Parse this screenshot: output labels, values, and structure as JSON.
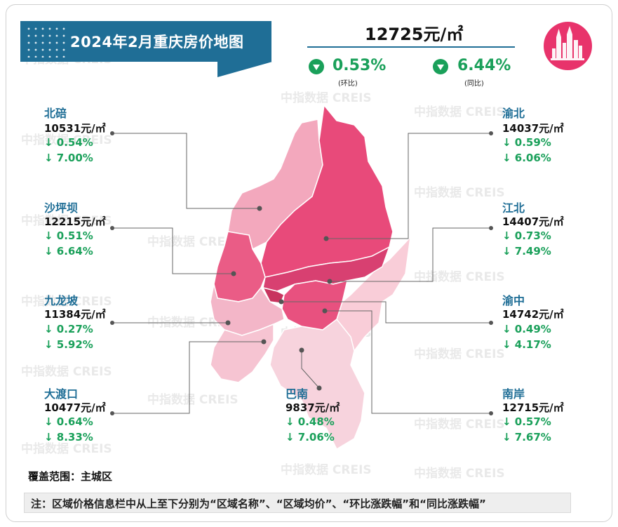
{
  "title": "2024年2月重庆房价地图",
  "average": {
    "price": "12725元/㎡",
    "mom": {
      "value": "0.53%",
      "label": "(环比)",
      "direction": "down"
    },
    "yoy": {
      "value": "6.44%",
      "label": "(同比)",
      "direction": "down"
    }
  },
  "districts": [
    {
      "name": "北碚",
      "price": "10531元/㎡",
      "mom": "↓ 0.54%",
      "yoy": "↓ 7.00%"
    },
    {
      "name": "沙坪坝",
      "price": "12215元/㎡",
      "mom": "↓ 0.51%",
      "yoy": "↓ 6.64%"
    },
    {
      "name": "九龙坡",
      "price": "11384元/㎡",
      "mom": "↓ 0.27%",
      "yoy": "↓ 5.92%"
    },
    {
      "name": "大渡口",
      "price": "10477元/㎡",
      "mom": "↓ 0.64%",
      "yoy": "↓ 8.33%"
    },
    {
      "name": "巴南",
      "price": "9837元/㎡",
      "mom": "↓ 0.48%",
      "yoy": "↓ 7.06%"
    },
    {
      "name": "渝北",
      "price": "14037元/㎡",
      "mom": "↓ 0.59%",
      "yoy": "↓ 6.06%"
    },
    {
      "name": "江北",
      "price": "14407元/㎡",
      "mom": "↓ 0.73%",
      "yoy": "↓ 7.49%"
    },
    {
      "name": "渝中",
      "price": "14742元/㎡",
      "mom": "↓ 0.49%",
      "yoy": "↓ 4.17%"
    },
    {
      "name": "南岸",
      "price": "12715元/㎡",
      "mom": "↓ 0.57%",
      "yoy": "↓ 7.67%"
    }
  ],
  "coverage": "覆盖范围：主城区",
  "note": "注：区域价格信息栏中从上至下分别为“区域名称”、“区域均价”、“环比涨跌幅”和“同比涨跌幅”",
  "watermark": "中指数据 CREIS",
  "colors": {
    "banner": "#1f6e96",
    "accent": "#e8336b",
    "down": "#1aa05a"
  }
}
